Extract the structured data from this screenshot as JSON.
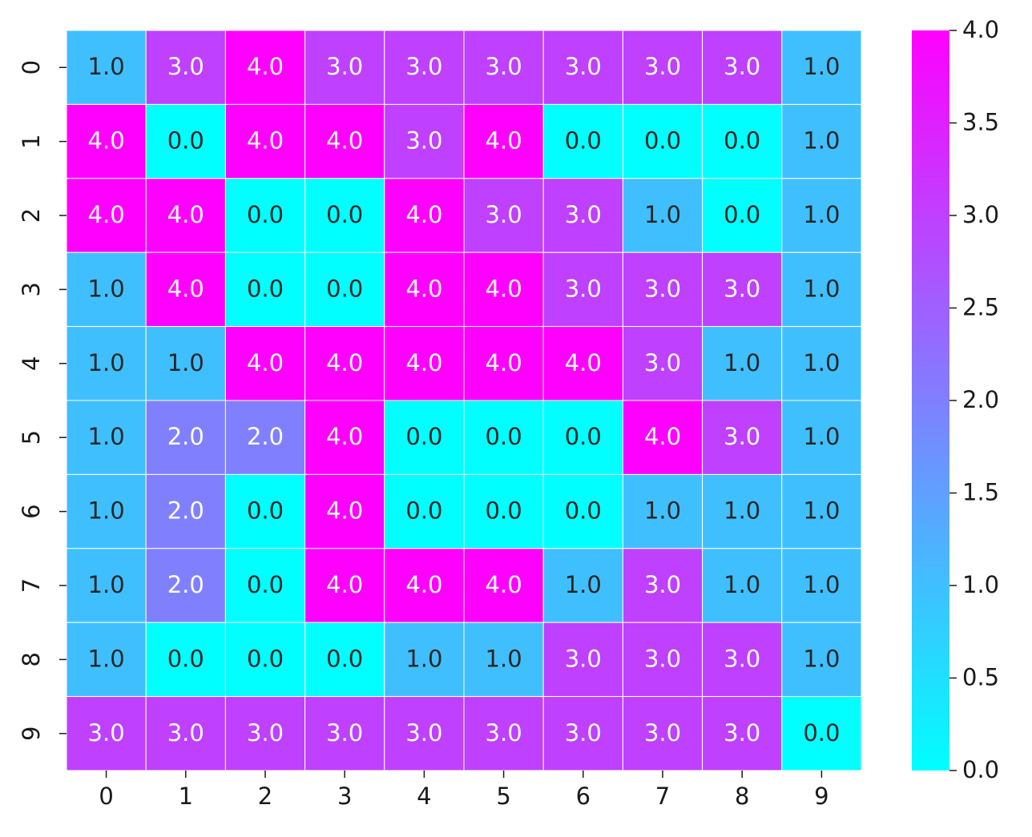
{
  "chart_data": {
    "type": "heatmap",
    "title": "",
    "xlabel": "",
    "ylabel": "",
    "x_categories": [
      "0",
      "1",
      "2",
      "3",
      "4",
      "5",
      "6",
      "7",
      "8",
      "9"
    ],
    "y_categories": [
      "0",
      "1",
      "2",
      "3",
      "4",
      "5",
      "6",
      "7",
      "8",
      "9"
    ],
    "values": [
      [
        1,
        3,
        4,
        3,
        3,
        3,
        3,
        3,
        3,
        1
      ],
      [
        4,
        0,
        4,
        4,
        3,
        4,
        0,
        0,
        0,
        1
      ],
      [
        4,
        4,
        0,
        0,
        4,
        3,
        3,
        1,
        0,
        1
      ],
      [
        1,
        4,
        0,
        0,
        4,
        4,
        3,
        3,
        3,
        1
      ],
      [
        1,
        1,
        4,
        4,
        4,
        4,
        4,
        3,
        1,
        1
      ],
      [
        1,
        2,
        2,
        4,
        0,
        0,
        0,
        4,
        3,
        1
      ],
      [
        1,
        2,
        0,
        4,
        0,
        0,
        0,
        1,
        1,
        1
      ],
      [
        1,
        2,
        0,
        4,
        4,
        4,
        1,
        3,
        1,
        1
      ],
      [
        1,
        0,
        0,
        0,
        1,
        1,
        3,
        3,
        3,
        1
      ],
      [
        3,
        3,
        3,
        3,
        3,
        3,
        3,
        3,
        3,
        0
      ]
    ],
    "cell_label_format": "1 decimal",
    "colormap": "cool",
    "colormap_stops": [
      "#00ffff",
      "#ff00ff"
    ],
    "value_range": [
      0,
      4
    ],
    "colorbar": {
      "ticks": [
        "0.0",
        "0.5",
        "1.0",
        "1.5",
        "2.0",
        "2.5",
        "3.0",
        "3.5",
        "4.0"
      ],
      "tick_values": [
        0,
        0.5,
        1,
        1.5,
        2,
        2.5,
        3,
        3.5,
        4
      ],
      "position": "right"
    },
    "cell_border_color": "#ffffff",
    "annotation_colors": {
      "light": "#ffffff",
      "dark": "#262626"
    }
  }
}
